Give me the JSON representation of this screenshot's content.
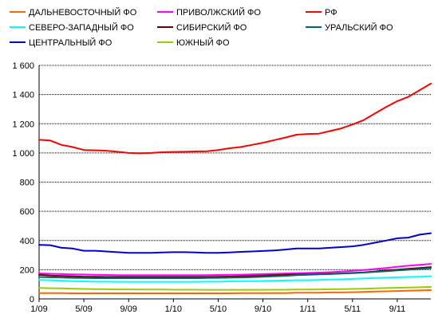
{
  "chart_data": {
    "type": "line",
    "title": "",
    "xlabel": "",
    "ylabel": "",
    "ylim": [
      0,
      1600
    ],
    "yticks": [
      "0",
      "200",
      "400",
      "600",
      "800",
      "1 000",
      "1 200",
      "1 400",
      "1 600"
    ],
    "xticks": [
      "1/09",
      "5/09",
      "9/09",
      "1/10",
      "5/10",
      "9/10",
      "1/11",
      "5/11",
      "9/11"
    ],
    "grid": "horizontal",
    "legend_position": "top",
    "x": [
      "2009-01",
      "2009-02",
      "2009-03",
      "2009-04",
      "2009-05",
      "2009-06",
      "2009-07",
      "2009-08",
      "2009-09",
      "2009-10",
      "2009-11",
      "2009-12",
      "2010-01",
      "2010-02",
      "2010-03",
      "2010-04",
      "2010-05",
      "2010-06",
      "2010-07",
      "2010-08",
      "2010-09",
      "2010-10",
      "2010-11",
      "2010-12",
      "2011-01",
      "2011-02",
      "2011-03",
      "2011-04",
      "2011-05",
      "2011-06",
      "2011-07",
      "2011-08",
      "2011-09",
      "2011-10",
      "2011-11",
      "2011-12"
    ],
    "series": [
      {
        "name": "ДАЛЬНЕВОСТОЧНЫЙ ФО",
        "color": "#ff6600",
        "values": [
          40,
          40,
          40,
          38,
          38,
          38,
          38,
          38,
          38,
          38,
          38,
          38,
          38,
          38,
          38,
          38,
          38,
          38,
          40,
          40,
          40,
          40,
          40,
          42,
          42,
          42,
          44,
          44,
          46,
          48,
          50,
          52,
          54,
          56,
          58,
          60
        ]
      },
      {
        "name": "ПРИВОЛЖСКИЙ ФО",
        "color": "#ff00ff",
        "values": [
          175,
          172,
          170,
          168,
          167,
          165,
          164,
          163,
          162,
          162,
          162,
          162,
          162,
          162,
          162,
          163,
          164,
          165,
          166,
          168,
          170,
          172,
          174,
          176,
          178,
          180,
          183,
          187,
          192,
          198,
          205,
          212,
          220,
          227,
          233,
          240
        ]
      },
      {
        "name": "РФ",
        "color": "#ff0000",
        "values": [
          1090,
          1085,
          1055,
          1040,
          1020,
          1018,
          1015,
          1008,
          1000,
          998,
          1000,
          1005,
          1007,
          1008,
          1010,
          1012,
          1020,
          1032,
          1040,
          1055,
          1070,
          1088,
          1105,
          1125,
          1130,
          1132,
          1150,
          1168,
          1195,
          1225,
          1270,
          1315,
          1355,
          1385,
          1430,
          1475
        ]
      },
      {
        "name": "СЕВЕРО-ЗАПАДНЫЙ ФО",
        "color": "#00ffff",
        "values": [
          130,
          128,
          125,
          122,
          120,
          118,
          118,
          117,
          117,
          117,
          117,
          117,
          117,
          117,
          117,
          118,
          118,
          120,
          121,
          122,
          123,
          124,
          126,
          128,
          128,
          130,
          132,
          134,
          137,
          140,
          143,
          145,
          148,
          150,
          152,
          155
        ]
      },
      {
        "name": "СИБИРСКИЙ ФО",
        "color": "#660000",
        "values": [
          165,
          160,
          157,
          155,
          152,
          151,
          150,
          150,
          150,
          150,
          150,
          150,
          150,
          150,
          150,
          150,
          152,
          153,
          155,
          157,
          160,
          162,
          165,
          167,
          168,
          170,
          172,
          175,
          178,
          182,
          188,
          195,
          200,
          206,
          212,
          218
        ]
      },
      {
        "name": "УРАЛЬСКИЙ ФО",
        "color": "#006666",
        "values": [
          150,
          148,
          146,
          144,
          143,
          142,
          142,
          142,
          142,
          142,
          142,
          142,
          142,
          142,
          142,
          143,
          144,
          145,
          147,
          149,
          152,
          155,
          158,
          162,
          165,
          168,
          170,
          173,
          176,
          180,
          185,
          190,
          195,
          200,
          205,
          210
        ]
      },
      {
        "name": "ЦЕНТРАЛЬНЫЙ ФО",
        "color": "#0000cc",
        "values": [
          370,
          368,
          350,
          345,
          330,
          330,
          325,
          320,
          315,
          315,
          315,
          318,
          320,
          320,
          318,
          315,
          315,
          318,
          322,
          325,
          328,
          332,
          338,
          345,
          345,
          345,
          350,
          355,
          360,
          370,
          385,
          400,
          415,
          420,
          440,
          450
        ]
      },
      {
        "name": "ЮЖНЫЙ ФО",
        "color": "#99cc00",
        "values": [
          75,
          73,
          72,
          70,
          68,
          67,
          66,
          65,
          65,
          64,
          64,
          64,
          63,
          63,
          63,
          62,
          62,
          62,
          62,
          62,
          62,
          63,
          63,
          64,
          64,
          65,
          66,
          67,
          68,
          70,
          72,
          74,
          76,
          78,
          80,
          82
        ]
      }
    ]
  }
}
